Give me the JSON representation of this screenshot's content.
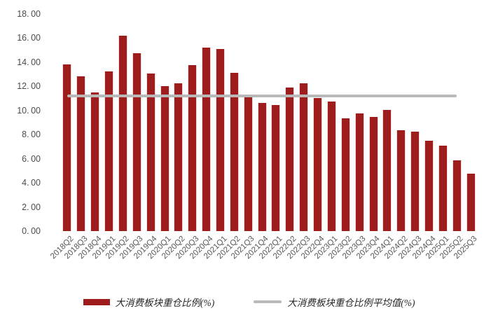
{
  "chart_data": {
    "type": "bar",
    "categories": [
      "2018Q2",
      "2018Q3",
      "2018Q4",
      "2019Q1",
      "2019Q2",
      "2019Q3",
      "2019Q4",
      "2020Q1",
      "2020Q2",
      "2020Q3",
      "2020Q4",
      "2021Q1",
      "2021Q2",
      "2021Q3",
      "2021Q4",
      "2022Q1",
      "2022Q2",
      "2022Q3",
      "2022Q4",
      "2023Q1",
      "2023Q2",
      "2023Q3",
      "2023Q4",
      "2024Q1",
      "2024Q2",
      "2024Q3",
      "2024Q4",
      "2025Q1",
      "2025Q2",
      "2025Q3"
    ],
    "series": [
      {
        "name": "大消费板块重仓比例(%)",
        "type": "bar",
        "color": "#9e1c1c",
        "values": [
          13.8,
          12.85,
          11.5,
          13.25,
          16.2,
          14.75,
          13.05,
          12.0,
          12.28,
          13.75,
          15.2,
          15.12,
          13.1,
          11.12,
          10.6,
          10.45,
          11.9,
          12.28,
          11.05,
          10.73,
          9.35,
          9.78,
          9.48,
          10.02,
          8.36,
          8.22,
          7.51,
          7.06,
          5.88,
          4.74
        ]
      },
      {
        "name": "大消费板块重仓比例平均值(%)",
        "type": "line",
        "color": "#b9b9b9",
        "value": 11.22,
        "span_category_indexes": [
          0,
          28
        ]
      }
    ],
    "xlabel": "",
    "ylabel": "",
    "ylim": [
      0,
      18
    ],
    "ytick_step": 2,
    "ytick_labels": [
      "0. 00",
      "2. 00",
      "4. 00",
      "6. 00",
      "8. 00",
      "10. 00",
      "12. 00",
      "14. 00",
      "16. 00",
      "18. 00"
    ],
    "grid": false,
    "legend_position": "bottom"
  },
  "legend": {
    "bar_label": "大消费板块重仓比例(%)",
    "line_label": "大消费板块重仓比例平均值(%)"
  },
  "colors": {
    "bar": "#9e1c1c",
    "average_line": "#b9b9b9",
    "y_tick_text": "#4c4c4c",
    "x_tick_text": "#575757",
    "legend_text": "#262626",
    "background": "#ffffff"
  }
}
